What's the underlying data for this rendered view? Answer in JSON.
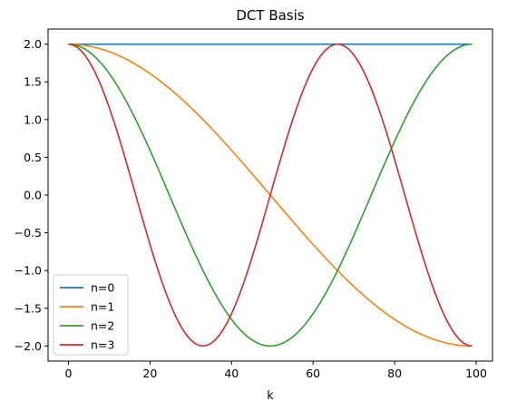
{
  "chart_data": {
    "type": "line",
    "title": "DCT Basis",
    "xlabel": "k",
    "ylabel": "",
    "xlim": [
      -5,
      104
    ],
    "ylim": [
      -2.2,
      2.2
    ],
    "x_ticks": [
      0,
      20,
      40,
      60,
      80,
      100
    ],
    "x_tick_labels": [
      "0",
      "20",
      "40",
      "60",
      "80",
      "100"
    ],
    "y_ticks": [
      2.0,
      1.5,
      1.0,
      0.5,
      0.0,
      -0.5,
      -1.0,
      -1.5,
      -2.0
    ],
    "y_tick_labels": [
      "2.0",
      "1.5",
      "1.0",
      "0.5",
      "0.0",
      "−0.5",
      "−1.0",
      "−1.5",
      "−2.0"
    ],
    "grid": false,
    "legend_position": "lower-left",
    "x": {
      "start": 0,
      "end": 99,
      "step": 1
    },
    "series": [
      {
        "name": "n=0",
        "color": "#1f77b4",
        "function": "2*cos(pi*0*k/99)"
      },
      {
        "name": "n=1",
        "color": "#ff7f0e",
        "function": "2*cos(pi*1*k/99)"
      },
      {
        "name": "n=2",
        "color": "#2ca02c",
        "function": "2*cos(pi*2*k/99)"
      },
      {
        "name": "n=3",
        "color": "#d62728",
        "function": "2*cos(pi*3*k/99)"
      }
    ]
  }
}
